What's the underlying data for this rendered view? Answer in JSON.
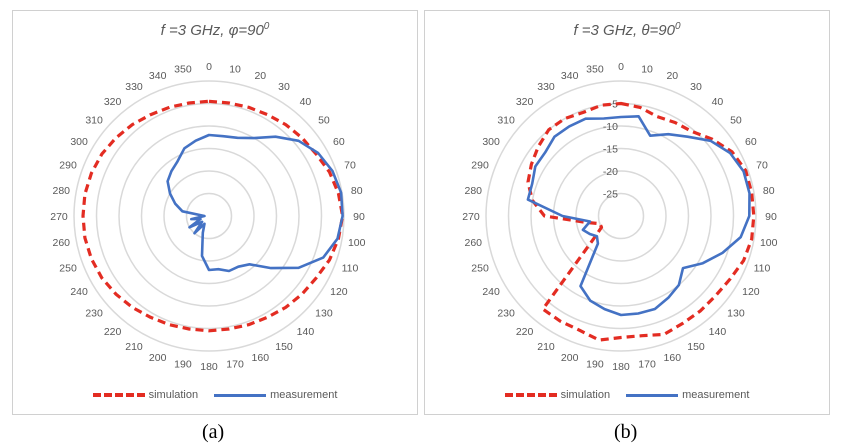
{
  "panels": [
    {
      "title_main": "f =3 GHz, φ=90",
      "title_sup": "0",
      "caption": "(a)",
      "legend": {
        "simulation": "simulation",
        "measurement": "measurement"
      }
    },
    {
      "title_main": "f =3 GHz, θ=90",
      "title_sup": "0",
      "caption": "(b)",
      "legend": {
        "simulation": "simulation",
        "measurement": "measurement"
      }
    }
  ],
  "chart_data": [
    {
      "type": "polar-line",
      "title": "f =3 GHz, φ=90⁰",
      "angle_labels": [
        "0",
        "10",
        "20",
        "30",
        "40",
        "50",
        "60",
        "70",
        "80",
        "90",
        "100",
        "110",
        "120",
        "130",
        "140",
        "150",
        "160",
        "170",
        "180",
        "190",
        "200",
        "210",
        "220",
        "230",
        "240",
        "250",
        "260",
        "270",
        "280",
        "290",
        "300",
        "310",
        "320",
        "330",
        "340",
        "350"
      ],
      "radial_range": [
        -30,
        0
      ],
      "radial_grid": [
        -30,
        -25,
        -20,
        -15,
        -10,
        -5,
        0
      ],
      "radial_labels_shown": false,
      "angles_deg": [
        0,
        10,
        20,
        30,
        40,
        50,
        60,
        70,
        80,
        90,
        100,
        110,
        120,
        130,
        140,
        150,
        160,
        170,
        180,
        190,
        200,
        210,
        220,
        230,
        240,
        250,
        260,
        270,
        280,
        290,
        300,
        310,
        320,
        330,
        340,
        350
      ],
      "series": [
        {
          "name": "simulation",
          "color": "#e32c22",
          "style": "dashed",
          "values": [
            -4.5,
            -4.5,
            -4.3,
            -4,
            -3.5,
            -3,
            -2.5,
            -1.5,
            -0.8,
            -0.3,
            -0.8,
            -1.5,
            -2.5,
            -3,
            -3.5,
            -4,
            -4.3,
            -4.5,
            -4.5,
            -4.5,
            -4.3,
            -4,
            -3.5,
            -3,
            -2.5,
            -2.2,
            -2,
            -2,
            -2,
            -2.2,
            -2.5,
            -3,
            -3.5,
            -4,
            -4.3,
            -4.5
          ]
        },
        {
          "name": "measurement",
          "color": "#4472c4",
          "style": "solid",
          "values": [
            -12,
            -12,
            -11.5,
            -10,
            -7,
            -4,
            -2,
            -0.8,
            -0.2,
            -0.3,
            -1,
            -3,
            -7,
            -12,
            -16,
            -17,
            -17,
            -18,
            -18,
            -21,
            -26,
            -28,
            -25,
            -28,
            -25,
            -28,
            -26,
            -29,
            -24,
            -22,
            -20,
            -18,
            -17,
            -16,
            -14,
            -13
          ]
        }
      ],
      "legend_position": "bottom"
    },
    {
      "type": "polar-line",
      "title": "f =3 GHz, θ=90⁰",
      "angle_labels": [
        "0",
        "10",
        "20",
        "30",
        "40",
        "50",
        "60",
        "70",
        "80",
        "90",
        "100",
        "110",
        "120",
        "130",
        "140",
        "150",
        "160",
        "170",
        "180",
        "190",
        "200",
        "210",
        "220",
        "230",
        "240",
        "250",
        "260",
        "270",
        "280",
        "290",
        "300",
        "310",
        "320",
        "330",
        "340",
        "350"
      ],
      "radial_range": [
        -30,
        0
      ],
      "radial_grid": [
        -30,
        -25,
        -20,
        -15,
        -10,
        -5,
        0
      ],
      "radial_ticks": [
        "-5",
        "-10",
        "-15",
        "-20",
        "-25"
      ],
      "radial_labels_shown": true,
      "angles_deg": [
        0,
        10,
        20,
        30,
        40,
        50,
        60,
        70,
        80,
        90,
        100,
        110,
        120,
        130,
        140,
        150,
        160,
        170,
        180,
        190,
        200,
        210,
        220,
        230,
        240,
        250,
        260,
        270,
        280,
        290,
        300,
        310,
        320,
        330,
        340,
        350
      ],
      "series": [
        {
          "name": "simulation",
          "color": "#e32c22",
          "style": "dashed",
          "values": [
            -5,
            -5.5,
            -6.5,
            -6,
            -5.5,
            -3.5,
            -1.5,
            -0.5,
            -0.5,
            -0.5,
            -0.5,
            -1,
            -2,
            -2.5,
            -2.5,
            -2.5,
            -2,
            -3,
            -3,
            -2,
            -3,
            -3,
            -3,
            -22,
            -25,
            -25,
            -22,
            -13,
            -10,
            -8,
            -7,
            -6,
            -5,
            -5,
            -5.5,
            -5
          ]
        },
        {
          "name": "measurement",
          "color": "#4472c4",
          "style": "solid",
          "values": [
            -8,
            -7.5,
            -11,
            -9,
            -7,
            -4,
            -2,
            -1,
            -1,
            -1.5,
            -3,
            -6,
            -9,
            -12,
            -10,
            -9,
            -8,
            -8,
            -8,
            -9,
            -10,
            -12,
            -22,
            -23,
            -22,
            -21,
            -23,
            -17,
            -9,
            -9,
            -8,
            -8,
            -7,
            -7,
            -7,
            -8
          ]
        }
      ],
      "legend_position": "bottom"
    }
  ]
}
